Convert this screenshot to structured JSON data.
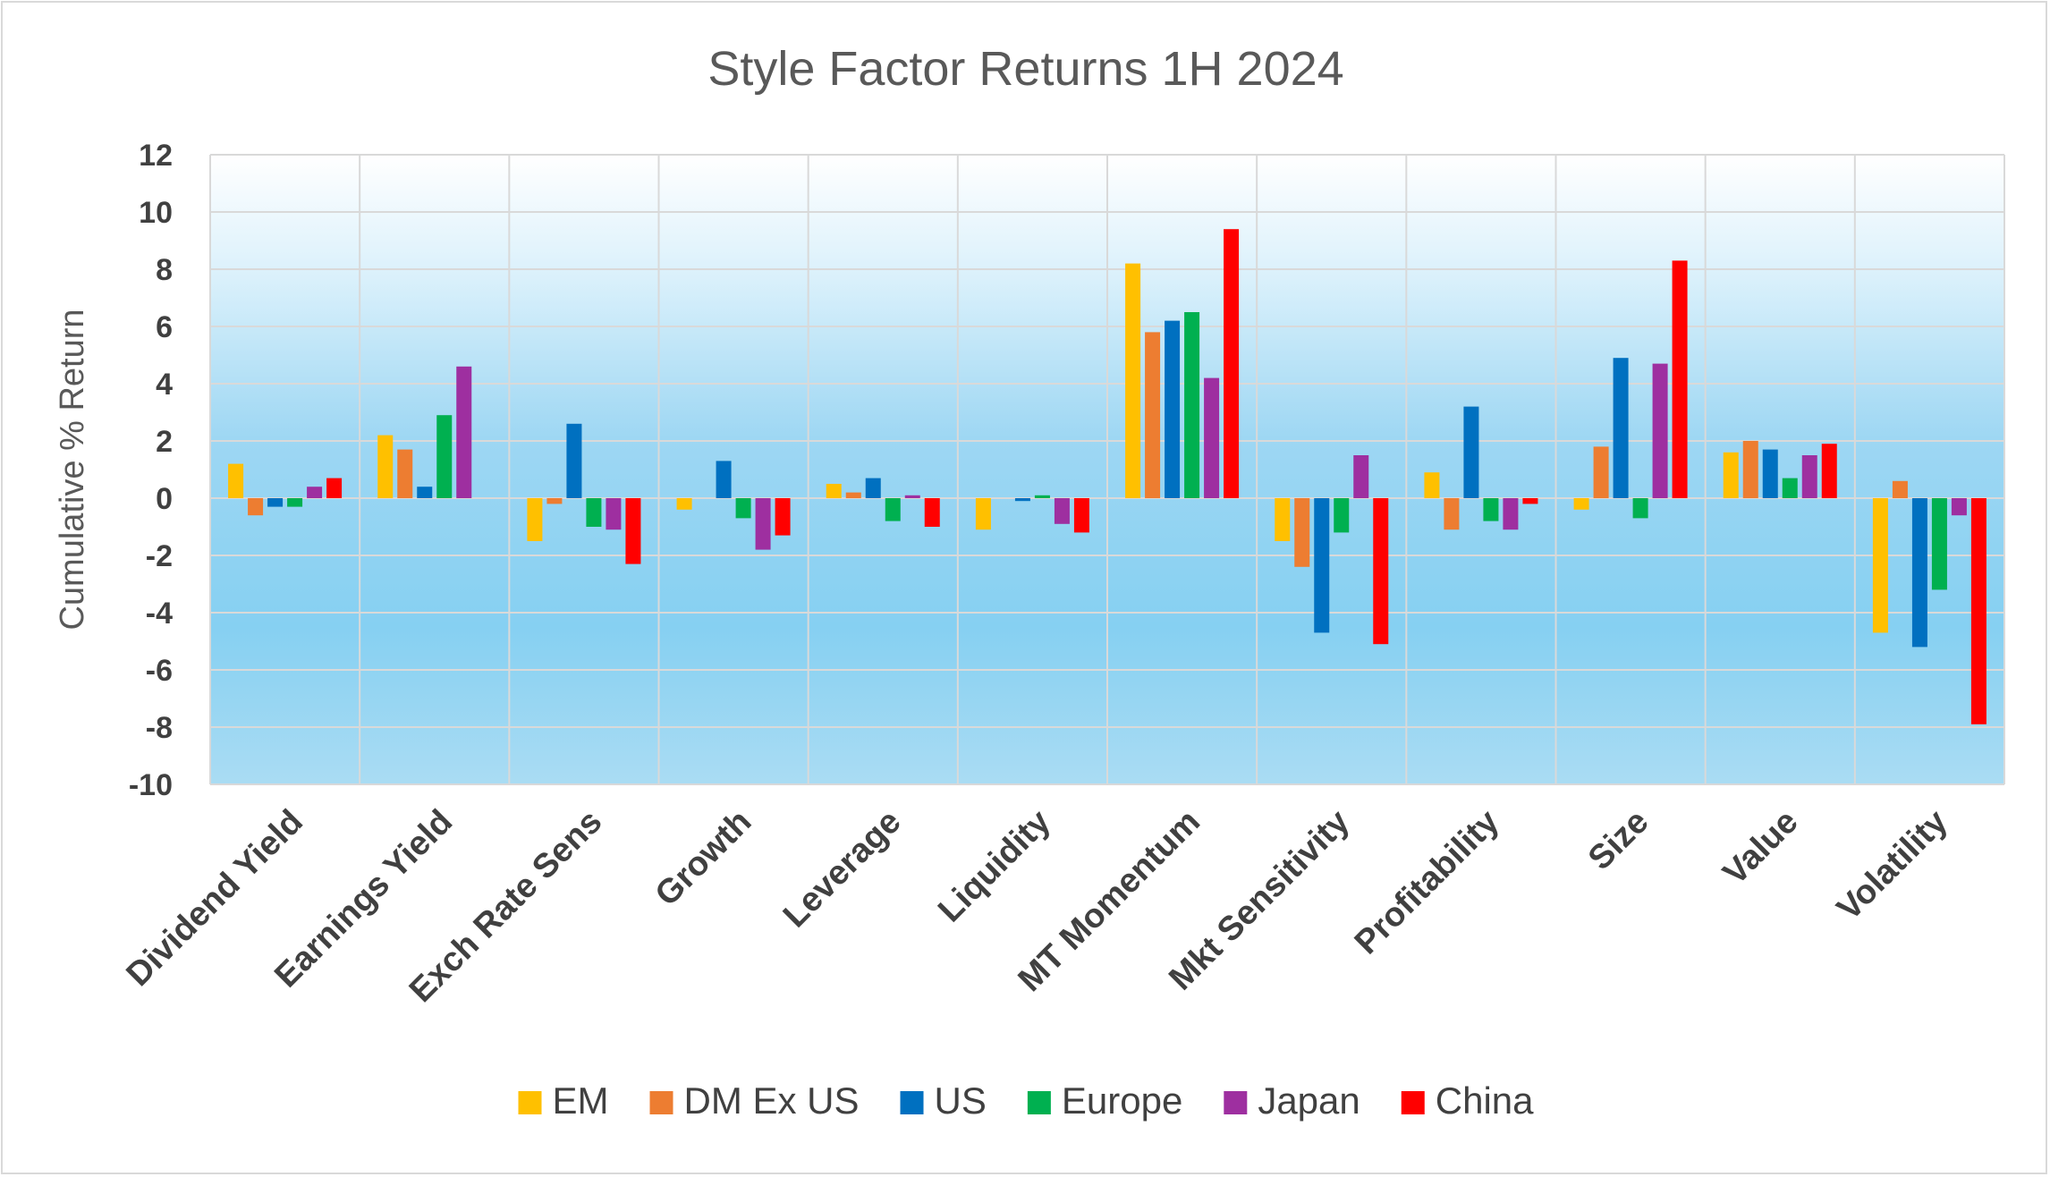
{
  "chart_data": {
    "type": "bar",
    "title": "Style Factor Returns 1H 2024",
    "xlabel": "",
    "ylabel": "Cumulative % Return",
    "ylim": [
      -10,
      12
    ],
    "ytick_step": 2,
    "grid": true,
    "legend_position": "bottom",
    "categories": [
      "Dividend Yield",
      "Earnings Yield",
      "Exch Rate Sens",
      "Growth",
      "Leverage",
      "Liquidity",
      "MT Momentum",
      "Mkt Sensitivity",
      "Profitability",
      "Size",
      "Value",
      "Volatility"
    ],
    "series": [
      {
        "name": "EM",
        "color": "#FFC000",
        "values": [
          1.2,
          2.2,
          -1.5,
          -0.4,
          0.5,
          -1.1,
          8.2,
          -1.5,
          0.9,
          -0.4,
          1.6,
          -4.7
        ]
      },
      {
        "name": "DM Ex US",
        "color": "#ED7D31",
        "values": [
          -0.6,
          1.7,
          -0.2,
          0.0,
          0.2,
          0.0,
          5.8,
          -2.4,
          -1.1,
          1.8,
          2.0,
          0.6
        ]
      },
      {
        "name": "US",
        "color": "#0070C0",
        "values": [
          -0.3,
          0.4,
          2.6,
          1.3,
          0.7,
          -0.1,
          6.2,
          -4.7,
          3.2,
          4.9,
          1.7,
          -5.2
        ]
      },
      {
        "name": "Europe",
        "color": "#00B050",
        "values": [
          -0.3,
          2.9,
          -1.0,
          -0.7,
          -0.8,
          0.1,
          6.5,
          -1.2,
          -0.8,
          -0.7,
          0.7,
          -3.2
        ]
      },
      {
        "name": "Japan",
        "color": "#9E2FA0",
        "values": [
          0.4,
          4.6,
          -1.1,
          -1.8,
          0.1,
          -0.9,
          4.2,
          1.5,
          -1.1,
          4.7,
          1.5,
          -0.6
        ]
      },
      {
        "name": "China",
        "color": "#FF0000",
        "values": [
          0.7,
          0.0,
          -2.3,
          -1.3,
          -1.0,
          -1.2,
          9.4,
          -5.1,
          -0.2,
          8.3,
          1.9,
          -7.9
        ]
      }
    ]
  },
  "colors": {
    "plot_background_top": "#ffffff",
    "plot_background_bottom": "#a3d7f1",
    "gridline": "#d9d9d9",
    "text": "#404040",
    "title": "#595959"
  }
}
